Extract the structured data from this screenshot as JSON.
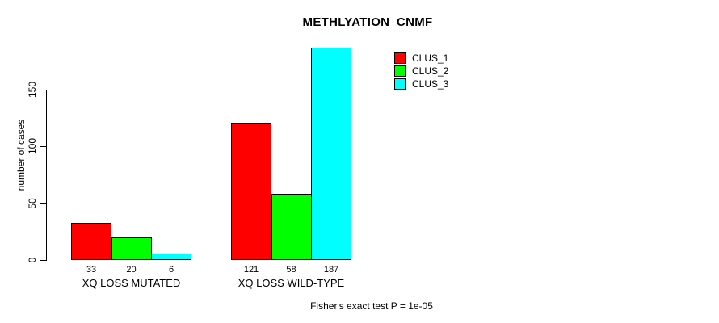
{
  "title": "METHLYATION_CNMF",
  "ylabel": "number of cases",
  "caption": "Fisher's exact test P = 1e-05",
  "legend": {
    "items": [
      {
        "label": "CLUS_1",
        "color": "#ff0000"
      },
      {
        "label": "CLUS_2",
        "color": "#00ff00"
      },
      {
        "label": "CLUS_3",
        "color": "#00ffff"
      }
    ]
  },
  "chart_data": {
    "type": "bar",
    "title": "METHLYATION_CNMF",
    "xlabel": "",
    "ylabel": "number of cases",
    "categories": [
      "XQ LOSS MUTATED",
      "XQ LOSS WILD-TYPE"
    ],
    "series": [
      {
        "name": "CLUS_1",
        "color": "#ff0000",
        "values": [
          33,
          121
        ]
      },
      {
        "name": "CLUS_2",
        "color": "#00ff00",
        "values": [
          20,
          58
        ]
      },
      {
        "name": "CLUS_3",
        "color": "#00ffff",
        "values": [
          6,
          187
        ]
      }
    ],
    "bar_value_labels": [
      [
        "33",
        "20",
        "6"
      ],
      [
        "121",
        "58",
        "187"
      ]
    ],
    "yticks": [
      0,
      50,
      100,
      150
    ],
    "ylim": [
      0,
      187
    ],
    "grid": false,
    "legend_position": "top-right",
    "annotation": "Fisher's exact test P = 1e-05",
    "bar_border_color": "#000000",
    "background_color": "#ffffff"
  }
}
